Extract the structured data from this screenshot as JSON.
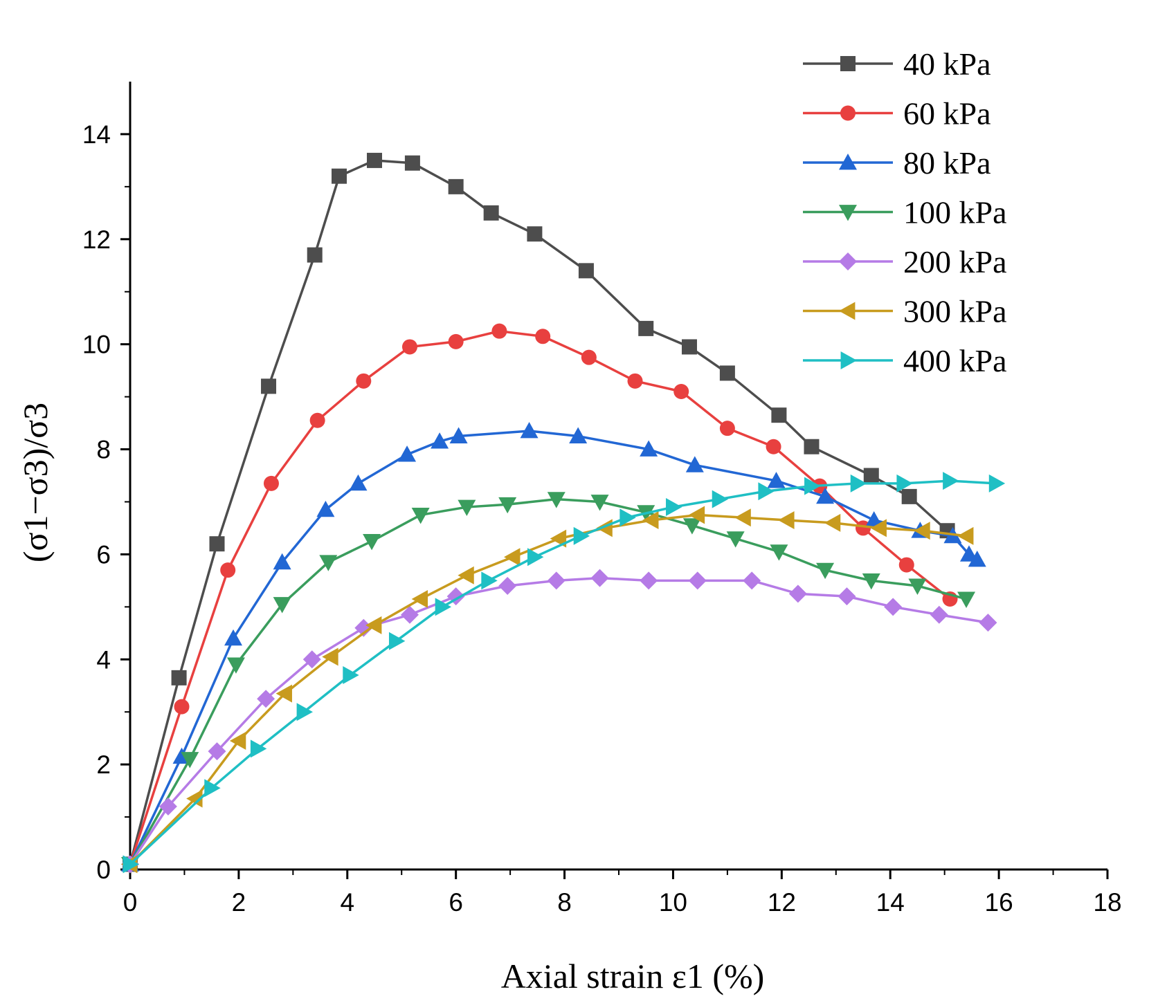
{
  "chart_data": {
    "type": "line",
    "xlabel": "Axial strain ε1 (%)",
    "ylabel": "(σ1−σ3)/σ3",
    "xlim": [
      0,
      18
    ],
    "ylim": [
      0,
      15
    ],
    "xticks": [
      "0",
      "2",
      "4",
      "6",
      "8",
      "10",
      "12",
      "14",
      "16",
      "18"
    ],
    "yticks": [
      "0",
      "2",
      "4",
      "6",
      "8",
      "10",
      "12",
      "14"
    ],
    "grid": false,
    "legend_position": "top-right",
    "series": [
      {
        "name": "40 kPa",
        "color": "#4d4d4d",
        "marker": "square",
        "x": [
          0,
          0.9,
          1.6,
          2.55,
          3.4,
          3.85,
          4.5,
          5.2,
          6.0,
          6.65,
          7.45,
          8.4,
          9.5,
          10.3,
          11.0,
          11.95,
          12.55,
          13.65,
          14.35,
          15.05
        ],
        "y": [
          0.1,
          3.65,
          6.2,
          9.2,
          11.7,
          13.2,
          13.5,
          13.45,
          13.0,
          12.5,
          12.1,
          11.4,
          10.3,
          9.95,
          9.45,
          8.65,
          8.05,
          7.5,
          7.1,
          6.45
        ]
      },
      {
        "name": "60 kPa",
        "color": "#e8403f",
        "marker": "circle",
        "x": [
          0,
          0.95,
          1.8,
          2.6,
          3.45,
          4.3,
          5.15,
          6.0,
          6.8,
          7.6,
          8.45,
          9.3,
          10.15,
          11.0,
          11.85,
          12.7,
          13.5,
          14.3,
          15.1
        ],
        "y": [
          0.1,
          3.1,
          5.7,
          7.35,
          8.55,
          9.3,
          9.95,
          10.05,
          10.25,
          10.15,
          9.75,
          9.3,
          9.1,
          8.4,
          8.05,
          7.3,
          6.5,
          5.8,
          5.15
        ]
      },
      {
        "name": "80 kPa",
        "color": "#2267d4",
        "marker": "triangle-up",
        "x": [
          0,
          0.95,
          1.9,
          2.8,
          3.6,
          4.2,
          5.1,
          5.7,
          6.05,
          7.35,
          8.25,
          9.55,
          10.4,
          11.9,
          12.8,
          13.7,
          14.55,
          15.15,
          15.45,
          15.6
        ],
        "y": [
          0.1,
          2.15,
          4.4,
          5.85,
          6.85,
          7.35,
          7.9,
          8.15,
          8.25,
          8.35,
          8.25,
          8.0,
          7.7,
          7.4,
          7.1,
          6.65,
          6.45,
          6.35,
          6.0,
          5.9
        ]
      },
      {
        "name": "100 kPa",
        "color": "#3a9d5d",
        "marker": "triangle-down",
        "x": [
          0,
          1.1,
          1.95,
          2.8,
          3.65,
          4.45,
          5.35,
          6.2,
          6.95,
          7.85,
          8.65,
          9.5,
          10.35,
          11.15,
          11.95,
          12.8,
          13.65,
          14.5,
          15.4
        ],
        "y": [
          0.1,
          2.1,
          3.9,
          5.05,
          5.85,
          6.25,
          6.75,
          6.9,
          6.95,
          7.05,
          7.0,
          6.8,
          6.55,
          6.3,
          6.05,
          5.7,
          5.5,
          5.4,
          5.15
        ]
      },
      {
        "name": "200 kPa",
        "color": "#b57be6",
        "marker": "diamond",
        "x": [
          0,
          0.7,
          1.6,
          2.5,
          3.35,
          4.3,
          5.15,
          6.0,
          6.95,
          7.85,
          8.65,
          9.55,
          10.45,
          11.45,
          12.3,
          13.2,
          14.05,
          14.9,
          15.8
        ],
        "y": [
          0.1,
          1.2,
          2.25,
          3.25,
          4.0,
          4.6,
          4.85,
          5.2,
          5.4,
          5.5,
          5.55,
          5.5,
          5.5,
          5.5,
          5.25,
          5.2,
          5.0,
          4.85,
          4.7
        ]
      },
      {
        "name": "300 kPa",
        "color": "#c89b1e",
        "marker": "triangle-left",
        "x": [
          0,
          1.2,
          2.0,
          2.85,
          3.7,
          4.5,
          5.35,
          6.2,
          7.05,
          7.9,
          8.75,
          9.6,
          10.45,
          11.3,
          12.1,
          12.95,
          13.8,
          14.6,
          15.4
        ],
        "y": [
          0.1,
          1.35,
          2.45,
          3.35,
          4.05,
          4.65,
          5.15,
          5.6,
          5.95,
          6.3,
          6.5,
          6.65,
          6.75,
          6.7,
          6.65,
          6.6,
          6.5,
          6.45,
          6.35
        ]
      },
      {
        "name": "400 kPa",
        "color": "#1fbfc4",
        "marker": "triangle-right",
        "x": [
          0,
          1.5,
          2.35,
          3.2,
          4.05,
          4.9,
          5.75,
          6.6,
          7.45,
          8.3,
          9.15,
          10.0,
          10.85,
          11.7,
          12.55,
          13.4,
          14.25,
          15.1,
          15.95
        ],
        "y": [
          0.1,
          1.55,
          2.3,
          3.0,
          3.7,
          4.35,
          5.0,
          5.5,
          5.95,
          6.35,
          6.7,
          6.9,
          7.05,
          7.2,
          7.3,
          7.35,
          7.35,
          7.4,
          7.35
        ]
      }
    ]
  }
}
